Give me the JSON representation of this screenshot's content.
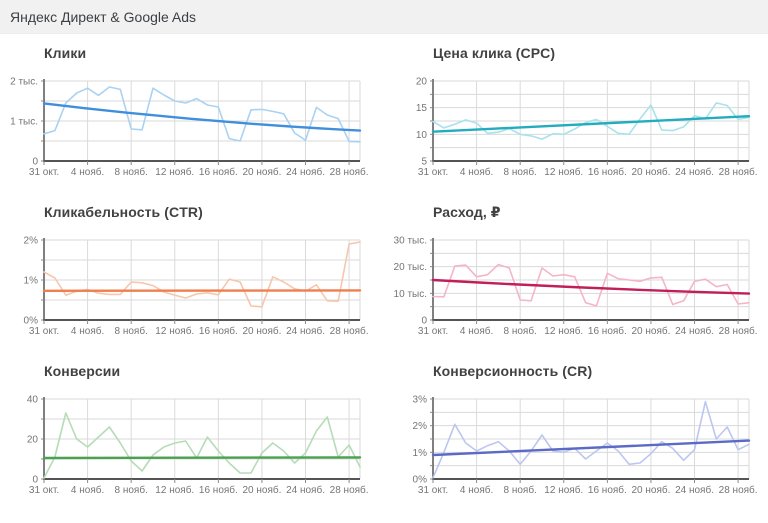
{
  "header": {
    "title": "Яндекс Директ & Google Ads"
  },
  "chart_data": [
    {
      "type": "line",
      "title": "Клики",
      "x_ticks": [
        "31 окт.",
        "4 нояб.",
        "8 нояб.",
        "12 нояб.",
        "16 нояб.",
        "20 нояб.",
        "24 нояб.",
        "28 нояб."
      ],
      "x_tick_step": 4,
      "ylim": [
        0,
        2000
      ],
      "y_minor_step": 500,
      "y_major": [
        {
          "v": 0,
          "label": "0"
        },
        {
          "v": 1000,
          "label": "1 тыс."
        },
        {
          "v": 2000,
          "label": "2 тыс."
        }
      ],
      "series": [
        {
          "name": "daily",
          "color": "#a9d2f3",
          "values": [
            680,
            760,
            1450,
            1700,
            1820,
            1640,
            1850,
            1790,
            800,
            780,
            1820,
            1650,
            1500,
            1450,
            1560,
            1400,
            1350,
            560,
            500,
            1280,
            1290,
            1240,
            1180,
            700,
            520,
            1340,
            1150,
            1060,
            490,
            480
          ]
        }
      ],
      "trend": {
        "name": "trend",
        "color": "#3f8fdc",
        "start": 1440,
        "end": 760,
        "bow": -70
      }
    },
    {
      "type": "line",
      "title": "Цена клика (CPC)",
      "x_ticks": [
        "31 окт.",
        "4 нояб.",
        "8 нояб.",
        "12 нояб.",
        "16 нояб.",
        "20 нояб.",
        "24 нояб.",
        "28 нояб."
      ],
      "x_tick_step": 4,
      "ylim": [
        5,
        20
      ],
      "y_minor_step": 2.5,
      "y_major": [
        {
          "v": 5,
          "label": "5"
        },
        {
          "v": 10,
          "label": "10"
        },
        {
          "v": 15,
          "label": "15"
        },
        {
          "v": 20,
          "label": "20"
        }
      ],
      "series": [
        {
          "name": "daily",
          "color": "#a8e2ec",
          "values": [
            12.4,
            11.2,
            11.9,
            12.7,
            12.1,
            10.2,
            10.4,
            11.1,
            10.0,
            9.7,
            9.1,
            10.1,
            10.0,
            11.0,
            12.2,
            12.8,
            11.5,
            10.2,
            10.0,
            12.9,
            15.5,
            10.8,
            10.7,
            11.4,
            13.5,
            12.9,
            15.9,
            15.4,
            12.8,
            13.2
          ]
        }
      ],
      "trend": {
        "name": "trend",
        "color": "#22acbe",
        "start": 10.5,
        "end": 13.4,
        "bow": 0
      }
    },
    {
      "type": "line",
      "title": "Кликабельность (CTR)",
      "x_ticks": [
        "31 окт.",
        "4 нояб.",
        "8 нояб.",
        "12 нояб.",
        "16 нояб.",
        "20 нояб.",
        "24 нояб.",
        "28 нояб."
      ],
      "x_tick_step": 4,
      "ylim": [
        0,
        2
      ],
      "y_minor_step": 0.5,
      "y_major": [
        {
          "v": 0,
          "label": "0%"
        },
        {
          "v": 1,
          "label": "1%"
        },
        {
          "v": 2,
          "label": "2%"
        }
      ],
      "series": [
        {
          "name": "daily",
          "color": "#f8c6ad",
          "values": [
            1.2,
            1.05,
            0.62,
            0.72,
            0.76,
            0.67,
            0.64,
            0.64,
            0.95,
            0.93,
            0.86,
            0.7,
            0.62,
            0.55,
            0.65,
            0.68,
            0.63,
            1.02,
            0.95,
            0.35,
            0.33,
            1.08,
            0.95,
            0.78,
            0.72,
            0.88,
            0.48,
            0.47,
            1.9,
            1.95
          ]
        }
      ],
      "trend": {
        "name": "trend",
        "color": "#ef7f4e",
        "start": 0.73,
        "end": 0.74,
        "bow": 0
      }
    },
    {
      "type": "line",
      "title": "Расход, ₽",
      "x_ticks": [
        "31 окт.",
        "4 нояб.",
        "8 нояб.",
        "12 нояб.",
        "16 нояб.",
        "20 нояб.",
        "24 нояб.",
        "28 нояб."
      ],
      "x_tick_step": 4,
      "ylim": [
        0,
        30000
      ],
      "y_minor_step": 5000,
      "y_major": [
        {
          "v": 0,
          "label": "0"
        },
        {
          "v": 10000,
          "label": "10 тыс."
        },
        {
          "v": 20000,
          "label": "20 тыс."
        },
        {
          "v": 30000,
          "label": "30 тыс."
        }
      ],
      "series": [
        {
          "name": "daily",
          "color": "#f5b5c8",
          "values": [
            8800,
            8700,
            20200,
            20600,
            16200,
            17000,
            20800,
            19500,
            7500,
            7200,
            19500,
            16500,
            17000,
            16200,
            6500,
            5300,
            17500,
            15500,
            15000,
            14500,
            15800,
            16000,
            5800,
            7200,
            14500,
            15300,
            12500,
            13300,
            6000,
            6500
          ]
        }
      ],
      "trend": {
        "name": "trend",
        "color": "#c01f5a",
        "start": 15000,
        "end": 9900,
        "bow": -400
      }
    },
    {
      "type": "line",
      "title": "Конверсии",
      "x_ticks": [
        "31 окт.",
        "4 нояб.",
        "8 нояб.",
        "12 нояб.",
        "16 нояб.",
        "20 нояб.",
        "24 нояб.",
        "28 нояб."
      ],
      "x_tick_step": 4,
      "ylim": [
        0,
        40
      ],
      "y_minor_step": 10,
      "y_major": [
        {
          "v": 0,
          "label": "0"
        },
        {
          "v": 20,
          "label": "20"
        },
        {
          "v": 40,
          "label": "40"
        }
      ],
      "series": [
        {
          "name": "daily",
          "color": "#b6dcb7",
          "values": [
            0.5,
            11,
            33,
            20,
            16,
            21,
            26,
            18,
            9,
            4,
            12,
            16,
            18,
            19,
            10.5,
            21,
            14,
            8,
            3,
            3,
            13,
            18,
            14,
            8,
            13,
            24,
            31,
            11,
            17,
            6
          ]
        }
      ],
      "trend": {
        "name": "trend",
        "color": "#4aa24e",
        "start": 10.5,
        "end": 10.8,
        "bow": 0
      }
    },
    {
      "type": "line",
      "title": "Конверсионность (CR)",
      "x_ticks": [
        "31 окт.",
        "4 нояб.",
        "8 нояб.",
        "12 нояб.",
        "16 нояб.",
        "20 нояб.",
        "24 нояб.",
        "28 нояб."
      ],
      "x_tick_step": 4,
      "ylim": [
        0,
        3
      ],
      "y_minor_step": 0.5,
      "y_major": [
        {
          "v": 0,
          "label": "0%"
        },
        {
          "v": 1,
          "label": "1%"
        },
        {
          "v": 2,
          "label": "2%"
        },
        {
          "v": 3,
          "label": "3%"
        }
      ],
      "series": [
        {
          "name": "daily",
          "color": "#bdc6ee",
          "values": [
            0.05,
            1.0,
            2.05,
            1.35,
            1.05,
            1.25,
            1.4,
            1.05,
            0.55,
            1.05,
            1.65,
            1.05,
            1.0,
            1.15,
            0.75,
            1.05,
            1.35,
            1.05,
            0.55,
            0.6,
            0.95,
            1.4,
            1.15,
            0.7,
            1.1,
            2.9,
            1.5,
            1.95,
            1.1,
            1.3
          ]
        }
      ],
      "trend": {
        "name": "trend",
        "color": "#5b6ac6",
        "start": 0.9,
        "end": 1.44,
        "bow": 0
      }
    }
  ],
  "style": {
    "grid_color": "#dadada",
    "axis_color": "#555555",
    "tick_color": "#8a8a8a",
    "label_color": "#757575"
  }
}
